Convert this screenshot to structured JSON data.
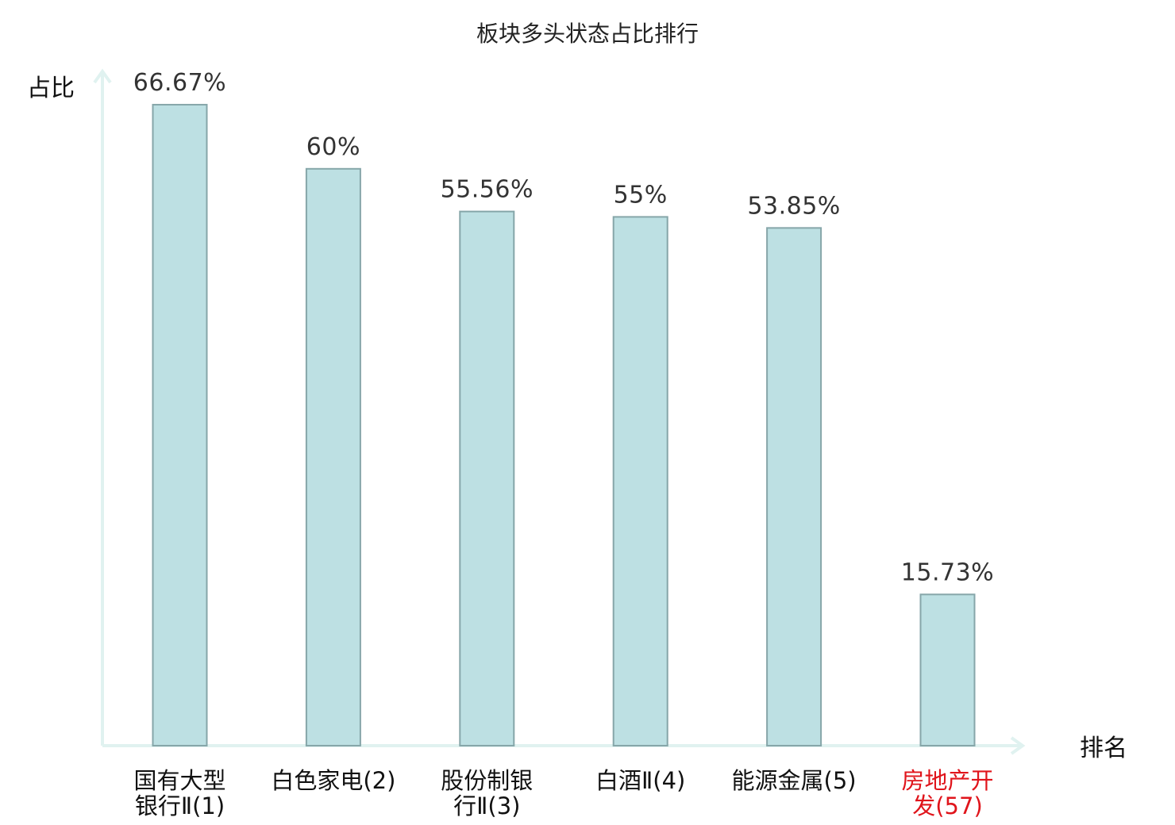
{
  "chart_data": {
    "type": "bar",
    "title": "板块多头状态占比排行",
    "ylabel": "占比",
    "xlabel": "排名",
    "ylim": [
      0,
      70
    ],
    "categories": [
      {
        "lines": [
          "国有大型",
          "银行Ⅱ(1)"
        ],
        "highlight": false
      },
      {
        "lines": [
          "白色家电(2)"
        ],
        "highlight": false
      },
      {
        "lines": [
          "股份制银",
          "行Ⅱ(3)"
        ],
        "highlight": false
      },
      {
        "lines": [
          "白酒Ⅱ(4)"
        ],
        "highlight": false
      },
      {
        "lines": [
          "能源金属(5)"
        ],
        "highlight": false
      },
      {
        "lines": [
          "房地产开",
          "发(57)"
        ],
        "highlight": true
      }
    ],
    "values": [
      66.67,
      60,
      55.56,
      55,
      53.85,
      15.73
    ],
    "value_labels": [
      "66.67%",
      "60%",
      "55.56%",
      "55%",
      "53.85%",
      "15.73%"
    ],
    "grid": false,
    "legend": "none"
  },
  "colors": {
    "bar_fill": "#bde0e3",
    "bar_stroke": "#86a6a9",
    "axis": "#e0f2f0",
    "highlight_text": "#e0141b",
    "normal_text": "#111111"
  }
}
